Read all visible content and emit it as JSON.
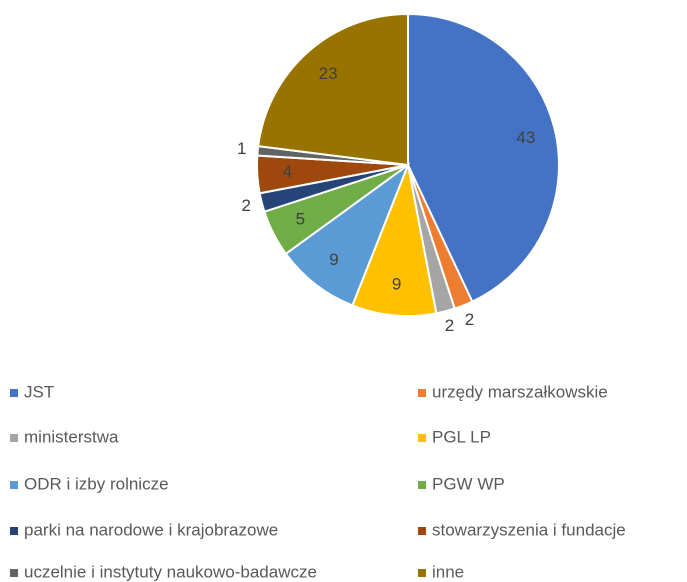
{
  "chart_data": {
    "type": "pie",
    "categories": [
      "JST",
      "urzędy marszałkowskie",
      "ministerstwa",
      "PGL LP",
      "ODR i izby rolnicze",
      "PGW WP",
      "parki na narodowe i krajobrazowe",
      "stowarzyszenia i fundacje",
      "uczelnie i instytuty naukowo-badawcze",
      "inne"
    ],
    "values": [
      43,
      2,
      2,
      9,
      9,
      5,
      2,
      4,
      1,
      23
    ],
    "colors": [
      "#4472c4",
      "#ed7d31",
      "#a5a5a5",
      "#ffc000",
      "#5b9bd5",
      "#70ad47",
      "#264478",
      "#9e480e",
      "#636363",
      "#997300"
    ],
    "legend": "bottom"
  }
}
